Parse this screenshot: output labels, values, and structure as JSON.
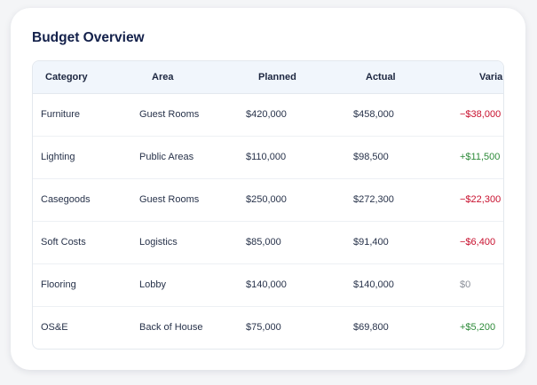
{
  "title": "Budget Overview",
  "colors": {
    "negative": "#c8102e",
    "positive": "#2e8b3a",
    "neutral": "#8a8f99"
  },
  "columns": [
    "Category",
    "Area",
    "Planned",
    "Actual",
    "Variance"
  ],
  "rows": [
    {
      "category": "Furniture",
      "area": "Guest Rooms",
      "planned": "$420,000",
      "actual": "$458,000",
      "variance": "−$38,000",
      "sign": "neg"
    },
    {
      "category": "Lighting",
      "area": "Public Areas",
      "planned": "$110,000",
      "actual": "$98,500",
      "variance": "+$11,500",
      "sign": "pos"
    },
    {
      "category": "Casegoods",
      "area": "Guest Rooms",
      "planned": "$250,000",
      "actual": "$272,300",
      "variance": "−$22,300",
      "sign": "neg"
    },
    {
      "category": "Soft Costs",
      "area": "Logistics",
      "planned": "$85,000",
      "actual": "$91,400",
      "variance": "−$6,400",
      "sign": "neg"
    },
    {
      "category": "Flooring",
      "area": "Lobby",
      "planned": "$140,000",
      "actual": "$140,000",
      "variance": "$0",
      "sign": "zero"
    },
    {
      "category": "OS&E",
      "area": "Back of House",
      "planned": "$75,000",
      "actual": "$69,800",
      "variance": "+$5,200",
      "sign": "pos"
    }
  ]
}
